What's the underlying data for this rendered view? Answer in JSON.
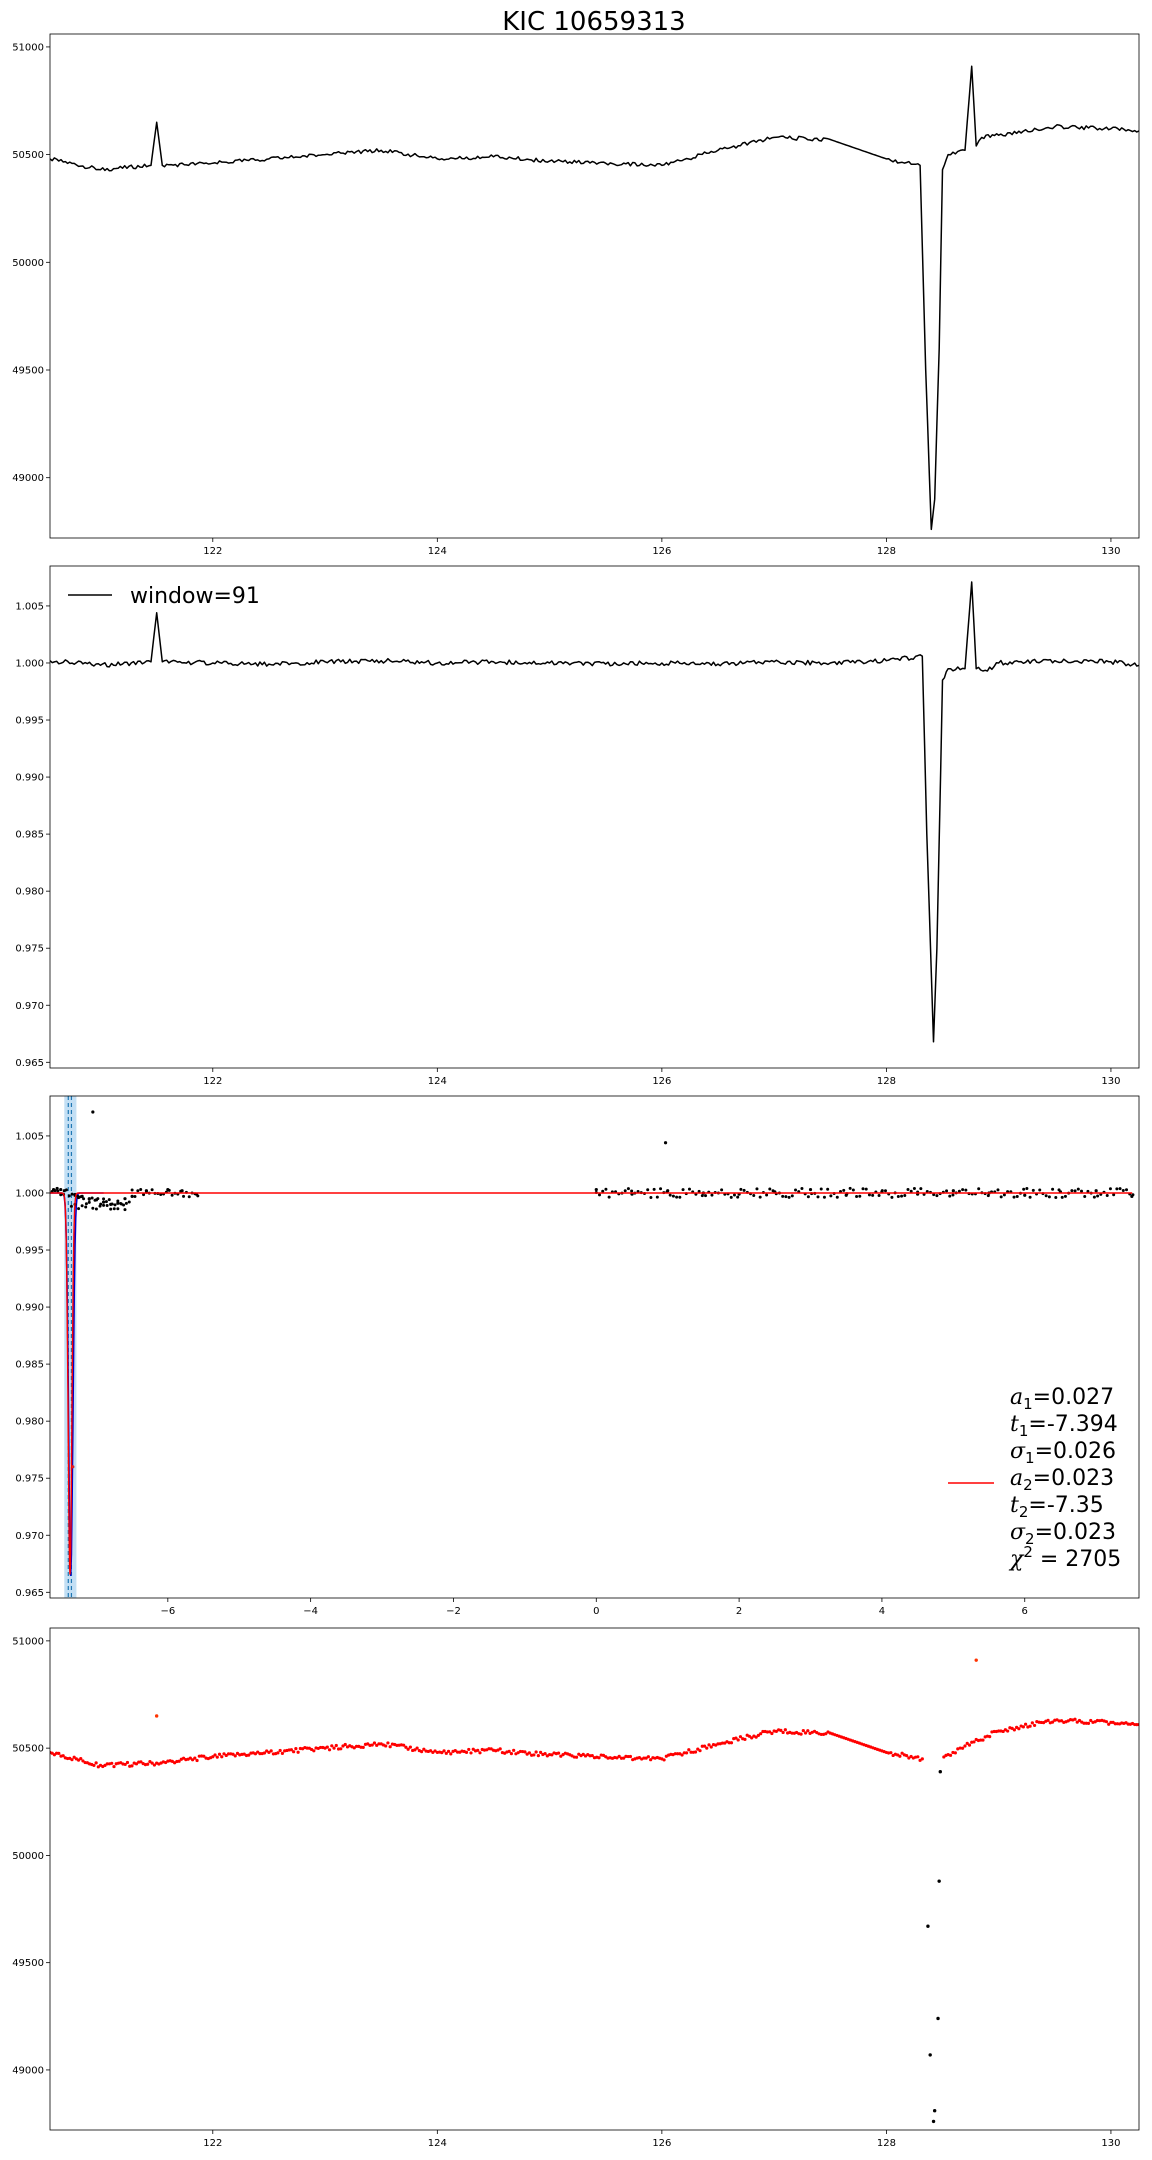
{
  "title": "KIC 10659313",
  "chart_data": [
    {
      "type": "line",
      "panel": "raw-flux",
      "xlim": [
        120.55,
        130.25
      ],
      "ylim": [
        48720,
        51060
      ],
      "xticks": [
        "122",
        "124",
        "126",
        "128",
        "130"
      ],
      "yticks": [
        "49000",
        "49500",
        "50000",
        "50500",
        "51000"
      ],
      "grid": false,
      "color": "#000000",
      "x": [
        120.55,
        121.0,
        121.45,
        121.5,
        121.55,
        122.0,
        122.5,
        123.0,
        123.5,
        124.0,
        124.5,
        125.0,
        125.5,
        126.0,
        126.5,
        127.0,
        127.5,
        128.0,
        128.3,
        128.35,
        128.4,
        128.43,
        128.47,
        128.5,
        128.55,
        128.7,
        128.76,
        128.8,
        128.85,
        129.0,
        129.5,
        130.0,
        130.25
      ],
      "y": [
        50480,
        50430,
        50450,
        50650,
        50450,
        50460,
        50480,
        50500,
        50520,
        50480,
        50490,
        50470,
        50460,
        50450,
        50520,
        50580,
        50570,
        50480,
        50450,
        49500,
        48760,
        48900,
        49600,
        50430,
        50500,
        50520,
        50910,
        50540,
        50580,
        50590,
        50630,
        50620,
        50610
      ]
    },
    {
      "type": "line",
      "panel": "normalized-flux",
      "xlim": [
        120.55,
        130.25
      ],
      "ylim": [
        0.9645,
        1.0085
      ],
      "xticks": [
        "122",
        "124",
        "126",
        "128",
        "130"
      ],
      "yticks": [
        "0.965",
        "0.970",
        "0.975",
        "0.980",
        "0.985",
        "0.990",
        "0.995",
        "1.000",
        "1.005"
      ],
      "legend": {
        "label": "window=91",
        "placement": "upper left"
      },
      "color": "#000000",
      "x": [
        120.55,
        121.0,
        121.45,
        121.5,
        121.55,
        122.0,
        122.5,
        123.0,
        123.5,
        124.0,
        124.5,
        125.0,
        125.5,
        126.0,
        126.5,
        127.0,
        127.5,
        128.0,
        128.32,
        128.36,
        128.42,
        128.45,
        128.5,
        128.55,
        128.7,
        128.76,
        128.8,
        128.9,
        129.0,
        129.5,
        130.0,
        130.25
      ],
      "y": [
        1.0002,
        0.9998,
        1.0001,
        1.0044,
        1.0001,
        1.0,
        0.9999,
        1.0001,
        1.0002,
        1.0,
        1.0001,
        1.0,
        0.9999,
        1.0,
        0.9999,
        1.0001,
        1.0,
        1.0002,
        1.0006,
        0.985,
        0.9668,
        0.975,
        0.9985,
        0.9995,
        0.9995,
        1.0071,
        0.9995,
        0.9993,
        1.0,
        1.0002,
        1.0001,
        0.9998
      ]
    },
    {
      "type": "scatter",
      "panel": "fit",
      "xlim": [
        -7.65,
        7.6
      ],
      "ylim": [
        0.9645,
        1.0085
      ],
      "xticks": [
        "−6",
        "−4",
        "−2",
        "0",
        "2",
        "4",
        "6"
      ],
      "yticks": [
        "0.965",
        "0.970",
        "0.975",
        "0.980",
        "0.985",
        "0.990",
        "0.995",
        "1.000",
        "1.005"
      ],
      "data_points_x": [
        -7.6,
        -7.55,
        -7.5,
        -7.45,
        -7.3,
        -7.25,
        -7.2,
        -7.1,
        -7.0,
        -6.9,
        -6.8,
        -6.7,
        -6.6,
        -6.5,
        -6.3,
        -6.0,
        -5.8,
        -5.6,
        0.0,
        0.5,
        1.0,
        1.5,
        2.0,
        2.5,
        3.0,
        3.5,
        4.0,
        4.5,
        5.0,
        5.5,
        6.0,
        6.5,
        7.0,
        7.5,
        -7.05,
        0.97,
        -7.33
      ],
      "data_points_y": [
        1.0003,
        1.0004,
        1.0003,
        1.0002,
        0.9998,
        0.9996,
        0.9997,
        0.9995,
        0.9994,
        0.9992,
        0.999,
        0.9991,
        0.9995,
        0.9997,
        1.0002,
        1.0003,
        1.0002,
        0.9999,
        1.0003,
        0.9999,
        1.0002,
        1.0,
        0.9999,
        1.0001,
        1.0003,
        0.9998,
        1.0001,
        0.9999,
        1.0002,
        1.0,
        0.9998,
        1.0001,
        1.0002,
        0.9997,
        1.0071,
        1.0044,
        0.976
      ],
      "model_x": [
        -7.65,
        -7.55,
        -7.5,
        -7.45,
        -7.4,
        -7.37,
        -7.33,
        -7.3,
        -7.25,
        -7.2,
        -7.1,
        7.6
      ],
      "model_y": [
        1.0,
        0.999,
        0.994,
        0.978,
        0.9685,
        0.9666,
        0.9685,
        0.978,
        0.994,
        0.999,
        1.0,
        1.0
      ],
      "shaded_span_x": [
        -7.45,
        -7.28
      ],
      "dashed_lines_x": [
        -7.394,
        -7.35
      ],
      "series": [
        {
          "name": "a1=0.027, t1=-7.394, σ1=0.026, a2=0.023, t2=-7.35, σ2=0.023, χ²=2705",
          "color": "#ff0000"
        }
      ],
      "legend": {
        "placement": "lower right",
        "lines": [
          {
            "sym": "a",
            "sub": "1",
            "sup": "",
            "eq": "=0.027"
          },
          {
            "sym": "t",
            "sub": "1",
            "sup": "",
            "eq": "=-7.394"
          },
          {
            "sym": "σ",
            "sub": "1",
            "sup": "",
            "eq": "=0.026"
          },
          {
            "sym": "a",
            "sub": "2",
            "sup": "",
            "eq": "=0.023"
          },
          {
            "sym": "t",
            "sub": "2",
            "sup": "",
            "eq": "=-7.35"
          },
          {
            "sym": "σ",
            "sub": "2",
            "sup": "",
            "eq": "=0.023"
          },
          {
            "sym": "χ",
            "sub": "",
            "sup": "2",
            "eq": " = 2705"
          }
        ]
      }
    },
    {
      "type": "scatter",
      "panel": "flux-points",
      "xlim": [
        120.55,
        130.25
      ],
      "ylim": [
        48720,
        51060
      ],
      "xticks": [
        "122",
        "124",
        "126",
        "128",
        "130"
      ],
      "yticks": [
        "49000",
        "49500",
        "50000",
        "50500",
        "51000"
      ],
      "trend_x": [
        120.55,
        121.0,
        121.5,
        122.0,
        122.5,
        123.0,
        123.5,
        124.0,
        124.5,
        125.0,
        125.5,
        126.0,
        126.5,
        127.0,
        127.5,
        128.0,
        128.32,
        128.55,
        128.7,
        129.0,
        129.5,
        130.0,
        130.25
      ],
      "trend_y": [
        50480,
        50420,
        50430,
        50460,
        50480,
        50500,
        50520,
        50480,
        50490,
        50470,
        50460,
        50450,
        50520,
        50580,
        50570,
        50480,
        50450,
        50470,
        50510,
        50580,
        50630,
        50620,
        50610
      ],
      "outliers_red_x": [
        121.5,
        128.8
      ],
      "outliers_red_y": [
        50650,
        50910
      ],
      "outliers_black_x": [
        128.48,
        128.47,
        128.37,
        128.46,
        128.39,
        128.43,
        128.42
      ],
      "outliers_black_y": [
        50390,
        49880,
        49670,
        49240,
        49070,
        48810,
        48760
      ]
    }
  ]
}
